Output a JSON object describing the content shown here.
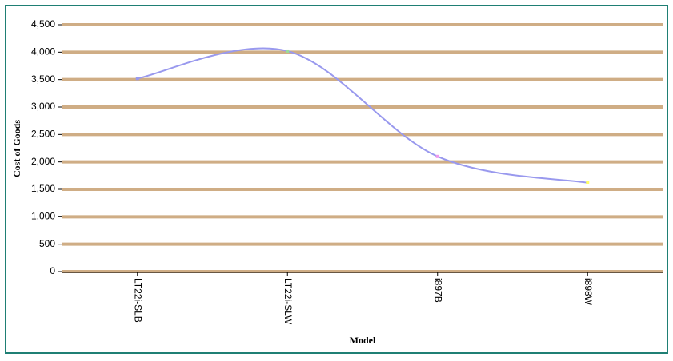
{
  "chart_data": {
    "type": "line",
    "x_label": "Model",
    "y_label": "Cost of Goods",
    "categories": [
      "LT22i-SLB",
      "LT22i-SLW",
      "i897B",
      "i898W"
    ],
    "series": [
      {
        "color": "#9999ee",
        "values": [
          3520,
          4020,
          2100,
          1620
        ]
      }
    ],
    "marker_colors": [
      "#9999ee",
      "#99dd99",
      "#ee99ee",
      "#ffff66"
    ],
    "smooth": true,
    "ylim": [
      0,
      4500
    ],
    "yticks": [
      0,
      500,
      {
        "value": 1000,
        "label": "1,000"
      },
      {
        "value": 1500,
        "label": "1,500"
      },
      {
        "value": 2000,
        "label": "2,000"
      },
      {
        "value": 2500,
        "label": "2,500"
      },
      {
        "value": 3000,
        "label": "3,000"
      },
      {
        "value": 3500,
        "label": "3,500"
      },
      {
        "value": 4000,
        "label": "4,000"
      },
      {
        "value": 4500,
        "label": "4,500"
      }
    ],
    "grid": true,
    "grid_color": "#cfad85"
  }
}
